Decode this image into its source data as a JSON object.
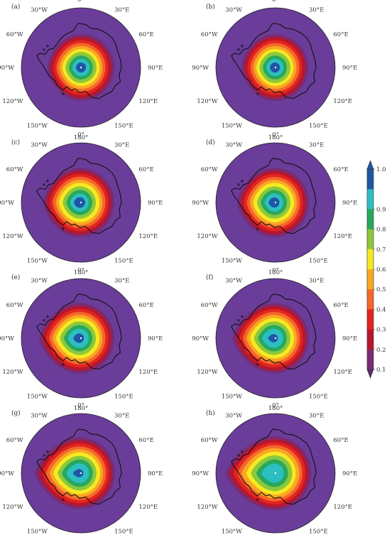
{
  "chart_data": {
    "type": "polar-contour",
    "projection": "south-polar stereographic",
    "colorbar": {
      "ticks": [
        "0.1",
        "0.2",
        "0.3",
        "0.4",
        "0.5",
        "0.6",
        "0.7",
        "0.8",
        "0.9",
        "1.0"
      ],
      "levels": [
        0.1,
        0.2,
        0.3,
        0.4,
        0.5,
        0.6,
        0.7,
        0.8,
        0.9,
        1.0
      ],
      "colors": [
        "#7b2b72",
        "#b8162c",
        "#e3241f",
        "#f4682a",
        "#f9a822",
        "#f5ea22",
        "#8cc83c",
        "#28a85e",
        "#2cbfc2",
        "#1f56a5"
      ],
      "background_color": "#6a3d9a"
    },
    "longitude_labels": [
      "0°",
      "30°E",
      "60°E",
      "90°E",
      "120°E",
      "150°E",
      "180°",
      "150°W",
      "120°W",
      "90°W",
      "60°W",
      "30°W"
    ],
    "panels": [
      {
        "label": "(a)",
        "max_level": 1.0,
        "radii": [
          0.56,
          0.51,
          0.46,
          0.41,
          0.36,
          0.31,
          0.26,
          0.2,
          0.145,
          0.085
        ],
        "center_offset": [
          0.0,
          0.0
        ],
        "west_bulge": 0.0
      },
      {
        "label": "(b)",
        "max_level": 1.0,
        "radii": [
          0.56,
          0.51,
          0.46,
          0.41,
          0.36,
          0.31,
          0.26,
          0.2,
          0.145,
          0.085
        ],
        "center_offset": [
          -0.01,
          0.0
        ],
        "west_bulge": 0.0
      },
      {
        "label": "(c)",
        "max_level": 1.0,
        "radii": [
          0.58,
          0.53,
          0.48,
          0.43,
          0.38,
          0.33,
          0.27,
          0.21,
          0.15,
          0.09
        ],
        "center_offset": [
          -0.02,
          0.0
        ],
        "west_bulge": 0.03
      },
      {
        "label": "(d)",
        "max_level": 1.0,
        "radii": [
          0.58,
          0.53,
          0.48,
          0.43,
          0.38,
          0.33,
          0.27,
          0.21,
          0.15,
          0.085
        ],
        "center_offset": [
          -0.02,
          0.0
        ],
        "west_bulge": 0.04
      },
      {
        "label": "(e)",
        "max_level": 1.0,
        "radii": [
          0.59,
          0.54,
          0.49,
          0.44,
          0.39,
          0.34,
          0.28,
          0.22,
          0.16,
          0.08
        ],
        "center_offset": [
          -0.03,
          0.0
        ],
        "west_bulge": 0.08
      },
      {
        "label": "(f)",
        "max_level": 1.0,
        "radii": [
          0.59,
          0.54,
          0.49,
          0.44,
          0.39,
          0.34,
          0.28,
          0.22,
          0.16,
          0.07
        ],
        "center_offset": [
          -0.03,
          0.0
        ],
        "west_bulge": 0.1
      },
      {
        "label": "(g)",
        "max_level": 1.0,
        "radii": [
          0.6,
          0.55,
          0.5,
          0.45,
          0.4,
          0.35,
          0.29,
          0.23,
          0.165,
          0.07
        ],
        "center_offset": [
          -0.03,
          0.0
        ],
        "west_bulge": 0.14
      },
      {
        "label": "(h)",
        "max_level": 0.9,
        "radii": [
          0.62,
          0.57,
          0.52,
          0.47,
          0.42,
          0.36,
          0.3,
          0.23,
          0.16
        ],
        "center_offset": [
          -0.02,
          0.0
        ],
        "west_bulge": 0.2
      }
    ]
  }
}
